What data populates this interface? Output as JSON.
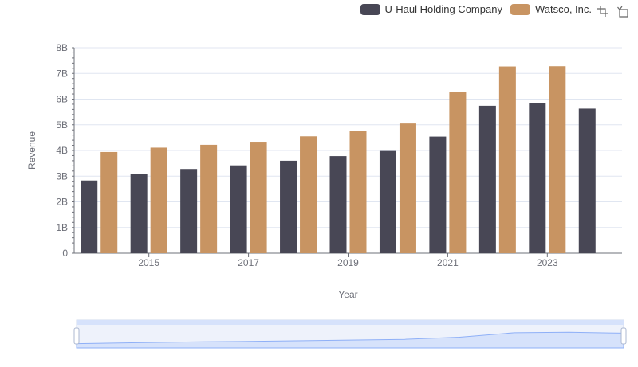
{
  "colors": {
    "uhaul": "#484755",
    "watsco": "#c89462",
    "grid": "#e0e6f1",
    "axis": "#6e7079",
    "zoom_fill": "#d6e2fb",
    "zoom_line": "#8fb0f7"
  },
  "toolbox": [
    {
      "name": "zoom-icon"
    },
    {
      "name": "restore-icon"
    }
  ],
  "chart_data": {
    "type": "bar",
    "xlabel": "Year",
    "ylabel": "Revenue",
    "y_ticks": [
      "0",
      "1B",
      "2B",
      "3B",
      "4B",
      "5B",
      "6B",
      "7B",
      "8B"
    ],
    "ylim": [
      0,
      8000000000
    ],
    "categories": [
      "2014",
      "2015",
      "2016",
      "2017",
      "2018",
      "2019",
      "2020",
      "2021",
      "2022",
      "2023",
      "2024"
    ],
    "x_tick_labels": [
      "2015",
      "2017",
      "2019",
      "2021",
      "2023"
    ],
    "legend_position": "top-right",
    "grid": true,
    "series": [
      {
        "name": "U-Haul Holding Company",
        "color": "#484755",
        "values": [
          2830000000,
          3070000000,
          3280000000,
          3420000000,
          3600000000,
          3780000000,
          3980000000,
          4540000000,
          5740000000,
          5860000000,
          5630000000
        ]
      },
      {
        "name": "Watsco, Inc.",
        "color": "#c89462",
        "values": [
          3940000000,
          4110000000,
          4220000000,
          4340000000,
          4550000000,
          4770000000,
          5050000000,
          6280000000,
          7270000000,
          7280000000,
          null
        ]
      }
    ]
  }
}
